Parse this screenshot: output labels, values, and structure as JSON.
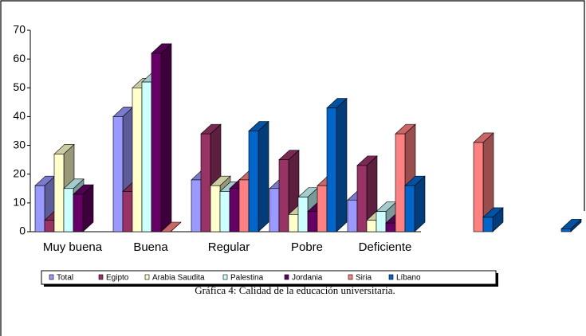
{
  "chart_data": {
    "type": "bar3d",
    "caption": "Gráfica 4: Calidad de la educación universitaria.",
    "categories": [
      "Muy buena",
      "Buena",
      "Regular",
      "Pobre",
      "Deficiente",
      null,
      null
    ],
    "series": [
      {
        "name": "Total",
        "color": "#9999ff",
        "values": [
          16,
          40,
          18,
          15,
          11,
          null,
          null
        ]
      },
      {
        "name": "Egipto",
        "color": "#993366",
        "values": [
          4,
          14,
          34,
          25,
          23,
          null,
          null
        ]
      },
      {
        "name": "Arabia Saudita",
        "color": "#ffffcc",
        "values": [
          27,
          50,
          16,
          6,
          4,
          null,
          null
        ]
      },
      {
        "name": "Palestina",
        "color": "#ccffff",
        "values": [
          15,
          52,
          14,
          12,
          7,
          null,
          null
        ]
      },
      {
        "name": "Jordania",
        "color": "#660066",
        "values": [
          13,
          62,
          15,
          7,
          3,
          null,
          null
        ]
      },
      {
        "name": "Siria",
        "color": "#ff8080",
        "values": [
          null,
          0,
          18,
          16,
          34,
          31,
          null
        ]
      },
      {
        "name": "Líbano",
        "color": "#0066cc",
        "values": [
          null,
          null,
          35,
          43,
          16,
          5,
          1
        ]
      }
    ],
    "ylim": [
      0,
      70
    ],
    "yticks": [
      0,
      10,
      20,
      30,
      40,
      50,
      60,
      70
    ]
  }
}
